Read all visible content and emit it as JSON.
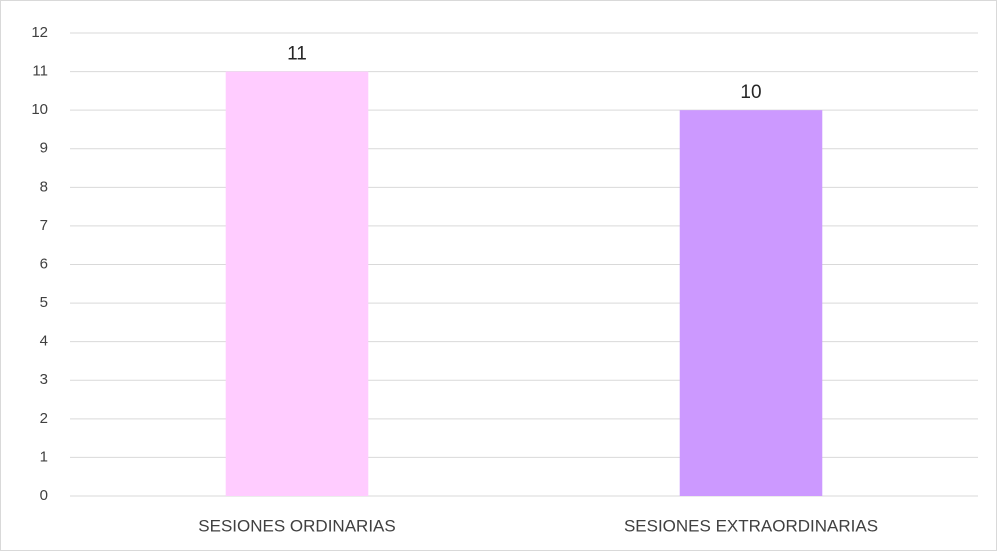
{
  "chart_data": {
    "type": "bar",
    "categories": [
      "SESIONES ORDINARIAS",
      "SESIONES EXTRAORDINARIAS"
    ],
    "values": [
      11,
      10
    ],
    "colors": [
      "#ffccff",
      "#cc99ff"
    ],
    "ylim": [
      0,
      12
    ],
    "yticks": [
      0,
      1,
      2,
      3,
      4,
      5,
      6,
      7,
      8,
      9,
      10,
      11,
      12
    ],
    "grid": true
  }
}
